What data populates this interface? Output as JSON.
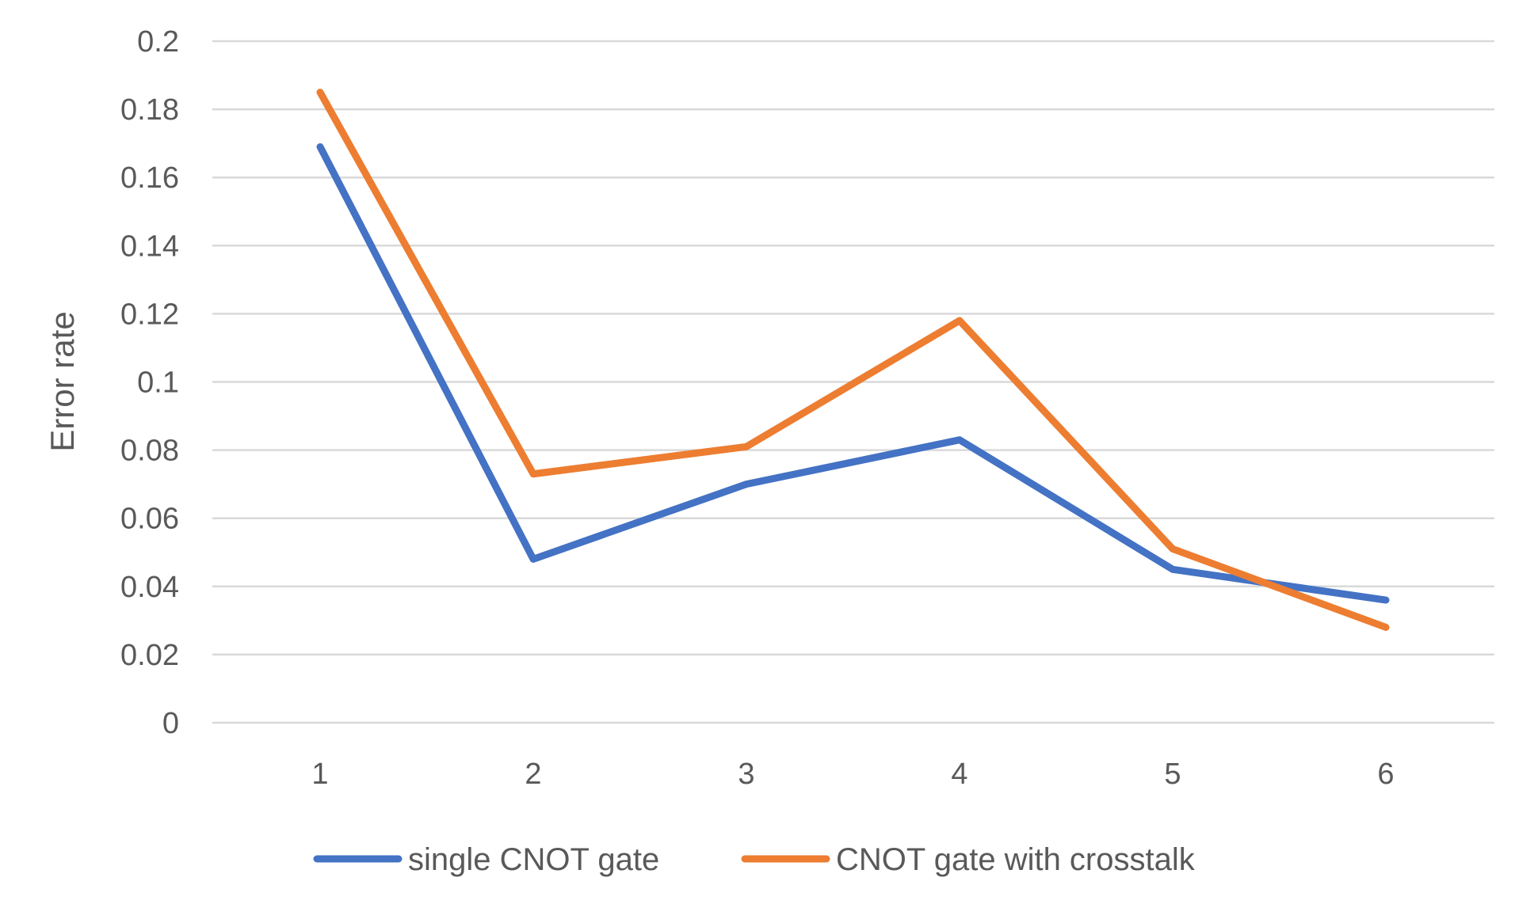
{
  "chart_data": {
    "type": "line",
    "title": "",
    "xlabel": "",
    "ylabel": "Error rate",
    "categories": [
      "1",
      "2",
      "3",
      "4",
      "5",
      "6"
    ],
    "ylim": [
      0,
      0.2
    ],
    "yticks": [
      0,
      0.02,
      0.04,
      0.06,
      0.08,
      0.1,
      0.12,
      0.14,
      0.16,
      0.18,
      0.2
    ],
    "ytick_labels": [
      "0",
      "0.02",
      "0.04",
      "0.06",
      "0.08",
      "0.1",
      "0.12",
      "0.14",
      "0.16",
      "0.18",
      "0.2"
    ],
    "grid": true,
    "legend_position": "bottom",
    "series": [
      {
        "name": "single CNOT gate",
        "color": "#4472C4",
        "values": [
          0.169,
          0.048,
          0.07,
          0.083,
          0.045,
          0.036
        ]
      },
      {
        "name": "CNOT gate with crosstalk",
        "color": "#ED7D31",
        "values": [
          0.185,
          0.073,
          0.081,
          0.118,
          0.051,
          0.028
        ]
      }
    ]
  }
}
